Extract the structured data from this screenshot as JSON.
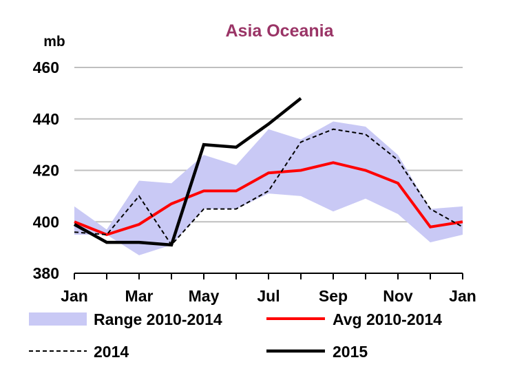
{
  "chart_data": {
    "type": "line",
    "title": "Asia Oceania",
    "ylabel": "mb",
    "xlabel": "",
    "ylim": [
      380,
      460
    ],
    "y_ticks": [
      380,
      400,
      420,
      440,
      460
    ],
    "x_tick_labels": [
      "Jan",
      "Mar",
      "May",
      "Jul",
      "Sep",
      "Nov",
      "Jan"
    ],
    "months": [
      "Jan",
      "Feb",
      "Mar",
      "Apr",
      "May",
      "Jun",
      "Jul",
      "Aug",
      "Sep",
      "Oct",
      "Nov",
      "Dec",
      "Jan"
    ],
    "grid": "horizontal",
    "range": {
      "name": "Range 2010-2014",
      "low": [
        395,
        395,
        387,
        391,
        405,
        405,
        411,
        410,
        404,
        409,
        403,
        392,
        395
      ],
      "high": [
        406,
        397,
        416,
        415,
        426,
        422,
        436,
        432,
        439,
        437,
        426,
        405,
        406
      ]
    },
    "series": [
      {
        "name": "Avg 2010-2014",
        "values": [
          400,
          395,
          399,
          407,
          412,
          412,
          419,
          420,
          423,
          420,
          415,
          398,
          400
        ]
      },
      {
        "name": "2014",
        "values": [
          396,
          395,
          410,
          391,
          405,
          405,
          412,
          431,
          436,
          434,
          424,
          405,
          398
        ]
      },
      {
        "name": "2015",
        "values": [
          399,
          392,
          392,
          391,
          430,
          429,
          438,
          448
        ]
      }
    ],
    "legend_position": "bottom",
    "colors": {
      "title": "#9a3466",
      "range_fill": "#c9c9f5",
      "avg_line": "#ff0000",
      "line_2014": "#000000",
      "line_2015": "#000000",
      "grid": "#bfbfbf",
      "axis": "#000000"
    }
  }
}
